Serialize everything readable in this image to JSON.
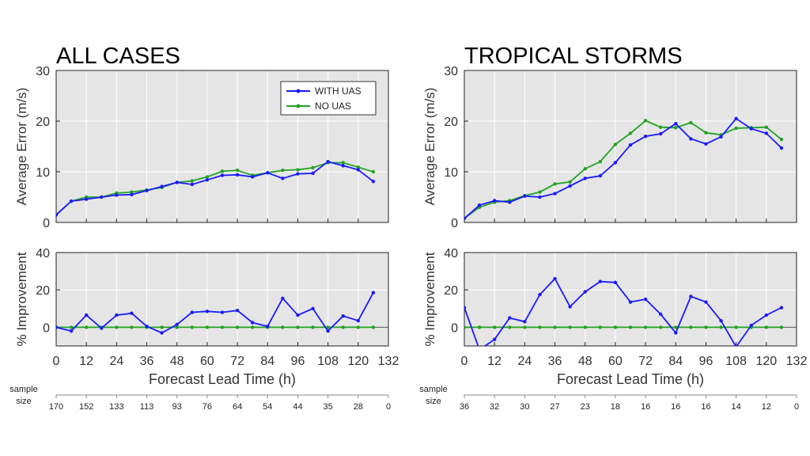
{
  "colors": {
    "with_uas": "#1a1aff",
    "no_uas": "#22a322",
    "panel_bg": "#e5e5e5",
    "grid": "#ffffff"
  },
  "xlabel": "Forecast Lead Time (h)",
  "x_ticks": [
    0,
    12,
    24,
    36,
    48,
    60,
    72,
    84,
    96,
    108,
    120,
    132
  ],
  "sample_size_label_1": "sample",
  "sample_size_label_2": "size",
  "legend": {
    "with_uas": "WITH UAS",
    "no_uas": "NO UAS"
  },
  "chart_data": [
    {
      "type": "line",
      "title": "ALL CASES",
      "ylabel": "Average Error (m/s)",
      "ylim": [
        0,
        30
      ],
      "y_ticks": [
        0,
        10,
        20,
        30
      ],
      "xlim": [
        0,
        132
      ],
      "x": [
        0,
        6,
        12,
        18,
        24,
        30,
        36,
        42,
        48,
        54,
        60,
        66,
        72,
        78,
        84,
        90,
        96,
        102,
        108,
        114,
        120,
        126
      ],
      "series": [
        {
          "name": "WITH UAS",
          "values": [
            1.5,
            4.2,
            4.6,
            5.0,
            5.4,
            5.5,
            6.3,
            7.1,
            7.9,
            7.5,
            8.4,
            9.3,
            9.4,
            9.0,
            9.8,
            8.7,
            9.6,
            9.7,
            12.0,
            11.2,
            10.4,
            8.1
          ]
        },
        {
          "name": "NO UAS",
          "values": [
            1.5,
            4.2,
            5.0,
            5.0,
            5.8,
            6.0,
            6.4,
            6.9,
            7.9,
            8.2,
            9.0,
            10.1,
            10.3,
            9.3,
            9.8,
            10.3,
            10.4,
            10.8,
            11.8,
            11.8,
            10.9,
            10.0
          ]
        }
      ]
    },
    {
      "type": "line",
      "title": "",
      "ylabel": "% Improvement",
      "ylim": [
        -10,
        40
      ],
      "y_ticks": [
        0,
        20,
        40
      ],
      "xlim": [
        0,
        132
      ],
      "x": [
        0,
        6,
        12,
        18,
        24,
        30,
        36,
        42,
        48,
        54,
        60,
        66,
        72,
        78,
        84,
        90,
        96,
        102,
        108,
        114,
        120,
        126
      ],
      "series": [
        {
          "name": "WITH UAS",
          "values": [
            0,
            -2,
            6.5,
            -0.5,
            6.5,
            7.5,
            0.5,
            -3,
            1.5,
            8,
            8.5,
            8,
            9,
            2.5,
            0.5,
            15.5,
            6.5,
            10,
            -2,
            6,
            3.5,
            18.5
          ]
        },
        {
          "name": "NO UAS",
          "values": [
            0,
            0,
            0,
            0,
            0,
            0,
            0,
            0,
            0,
            0,
            0,
            0,
            0,
            0,
            0,
            0,
            0,
            0,
            0,
            0,
            0,
            0
          ]
        }
      ]
    },
    {
      "type": "line",
      "title": "TROPICAL STORMS",
      "ylabel": "Average Error (m/s)",
      "ylim": [
        0,
        30
      ],
      "y_ticks": [
        0,
        10,
        20,
        30
      ],
      "xlim": [
        0,
        132
      ],
      "x": [
        0,
        6,
        12,
        18,
        24,
        30,
        36,
        42,
        48,
        54,
        60,
        66,
        72,
        78,
        84,
        90,
        96,
        102,
        108,
        114,
        120,
        126
      ],
      "series": [
        {
          "name": "WITH UAS",
          "values": [
            0.8,
            3.4,
            4.3,
            4.0,
            5.2,
            5.0,
            5.7,
            7.2,
            8.7,
            9.2,
            11.8,
            15.3,
            17.0,
            17.5,
            19.5,
            16.5,
            15.5,
            16.9,
            20.5,
            18.5,
            17.6,
            14.7
          ]
        },
        {
          "name": "NO UAS",
          "values": [
            0.8,
            3.0,
            4.0,
            4.3,
            5.3,
            6.0,
            7.6,
            8.0,
            10.6,
            12.0,
            15.4,
            17.6,
            20.1,
            18.8,
            18.7,
            19.7,
            17.7,
            17.3,
            18.6,
            18.7,
            18.8,
            16.4
          ]
        }
      ]
    },
    {
      "type": "line",
      "title": "",
      "ylabel": "% Improvement",
      "ylim": [
        -10,
        40
      ],
      "y_ticks": [
        0,
        20,
        40
      ],
      "xlim": [
        0,
        132
      ],
      "x": [
        0,
        6,
        12,
        18,
        24,
        30,
        36,
        42,
        48,
        54,
        60,
        66,
        72,
        78,
        84,
        90,
        96,
        102,
        108,
        114,
        120,
        126
      ],
      "series": [
        {
          "name": "WITH UAS",
          "values": [
            10.5,
            -12,
            -6.5,
            5,
            3,
            17.5,
            26,
            11,
            19,
            24.5,
            24,
            13.5,
            15,
            7,
            -3,
            16.5,
            13.5,
            3.5,
            -10.5,
            1,
            6.5,
            10.5
          ]
        },
        {
          "name": "NO UAS",
          "values": [
            0,
            0,
            0,
            0,
            0,
            0,
            0,
            0,
            0,
            0,
            0,
            0,
            0,
            0,
            0,
            0,
            0,
            0,
            0,
            0,
            0,
            0
          ]
        }
      ]
    }
  ],
  "sample_sizes": [
    {
      "x": [
        0,
        12,
        24,
        36,
        48,
        60,
        72,
        84,
        96,
        108,
        120,
        132
      ],
      "labels": [
        "170",
        "152",
        "133",
        "113",
        "93",
        "76",
        "64",
        "54",
        "44",
        "35",
        "28",
        "0"
      ]
    },
    {
      "x": [
        0,
        12,
        24,
        36,
        48,
        60,
        72,
        84,
        96,
        108,
        120,
        132
      ],
      "labels": [
        "36",
        "32",
        "30",
        "27",
        "23",
        "18",
        "16",
        "16",
        "16",
        "14",
        "12",
        "0"
      ]
    }
  ]
}
